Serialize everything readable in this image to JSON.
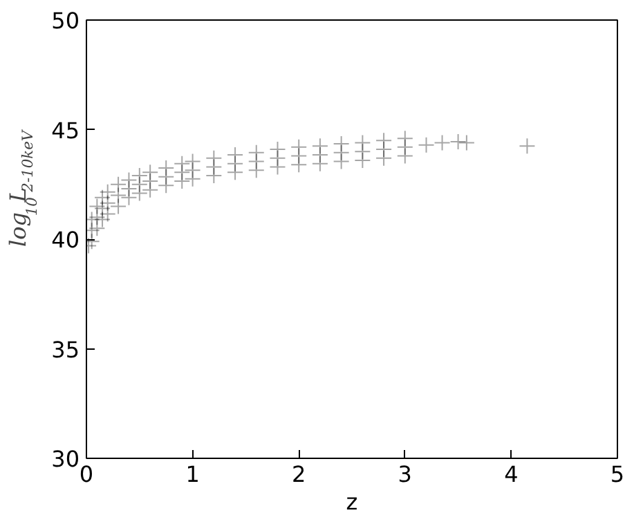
{
  "chart_data": {
    "type": "scatter",
    "xlabel": "z",
    "ylabel": "log$_{10}$L$_{2-10keV}$",
    "xlim": [
      0,
      5
    ],
    "ylim": [
      30,
      50
    ],
    "xticks": [
      0,
      1,
      2,
      3,
      4,
      5
    ],
    "yticks": [
      30,
      35,
      40,
      45,
      50
    ],
    "grid": false,
    "marker": "cross",
    "series": [
      {
        "color": "#000000",
        "x": [
          0.02,
          0.05,
          0.05,
          0.05,
          0.1,
          0.1,
          0.1,
          0.15,
          0.15,
          0.15,
          0.2,
          0.2,
          0.2,
          0.3,
          0.3,
          0.3,
          0.4,
          0.4,
          0.4,
          0.5,
          0.5,
          0.5,
          0.6,
          0.6,
          0.6,
          0.75,
          0.75,
          0.75,
          0.9,
          0.9,
          0.9,
          1.0,
          1.0,
          1.0,
          1.2,
          1.2,
          1.2,
          1.4,
          1.4,
          1.4,
          1.6,
          1.6,
          1.6,
          1.8,
          1.8,
          1.8,
          2.0,
          2.0,
          2.0,
          2.2,
          2.2,
          2.2,
          2.4,
          2.4,
          2.4,
          2.6,
          2.6,
          2.6,
          2.8,
          2.8,
          2.8,
          3.0,
          3.0,
          3.0,
          3.2,
          3.35,
          3.5,
          3.58,
          4.15
        ],
        "values": [
          39.7,
          40.4,
          40.9,
          39.9,
          41.0,
          41.5,
          40.5,
          41.4,
          41.9,
          40.9,
          41.65,
          42.15,
          41.15,
          42.0,
          42.5,
          41.5,
          42.3,
          42.7,
          41.9,
          42.5,
          42.9,
          42.1,
          42.65,
          43.05,
          42.25,
          42.85,
          43.25,
          42.45,
          43.05,
          43.45,
          42.65,
          43.15,
          43.55,
          42.75,
          43.3,
          43.7,
          42.9,
          43.45,
          43.85,
          43.05,
          43.55,
          43.95,
          43.15,
          43.7,
          44.1,
          43.3,
          43.8,
          44.2,
          43.4,
          43.85,
          44.25,
          43.45,
          43.95,
          44.35,
          43.55,
          44.0,
          44.4,
          43.6,
          44.1,
          44.5,
          43.7,
          44.2,
          44.6,
          43.8,
          44.3,
          44.4,
          44.45,
          44.4,
          44.25
        ]
      }
    ]
  }
}
